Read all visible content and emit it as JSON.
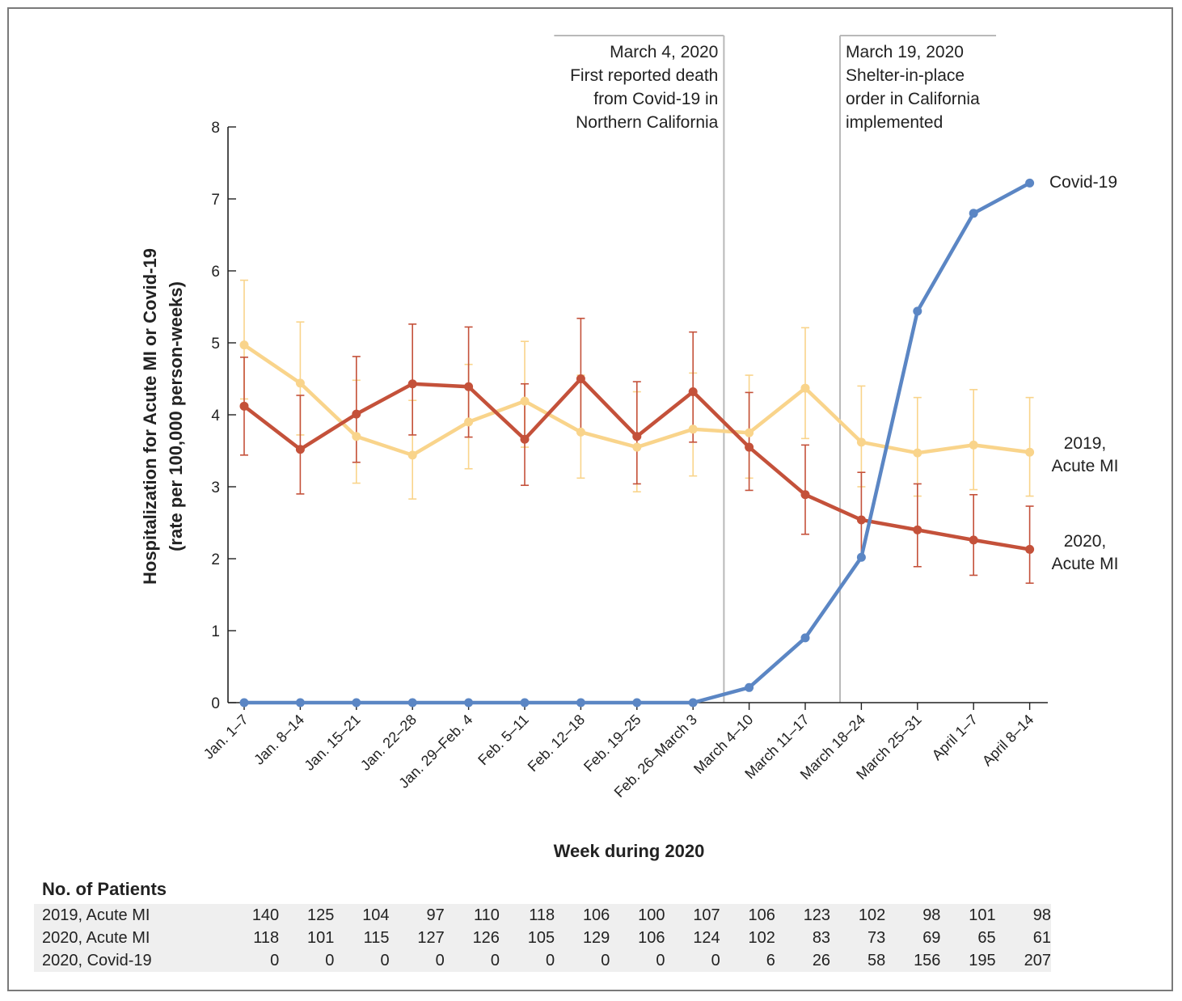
{
  "chart_data": {
    "type": "line",
    "xlabel": "Week during 2020",
    "ylabel_line1": "Hospitalization for Acute MI or Covid-19",
    "ylabel_line2": "(rate per 100,000 person-weeks)",
    "ylim": [
      0,
      8
    ],
    "yticks": [
      "0",
      "1",
      "2",
      "3",
      "4",
      "5",
      "6",
      "7",
      "8"
    ],
    "categories": [
      "Jan. 1–7",
      "Jan. 8–14",
      "Jan. 15–21",
      "Jan. 22–28",
      "Jan. 29–Feb. 4",
      "Feb. 5–11",
      "Feb. 12–18",
      "Feb. 19–25",
      "Feb. 26–March 3",
      "March 4–10",
      "March 11–17",
      "March 18–24",
      "March 25–31",
      "April 1–7",
      "April 8–14"
    ],
    "series": [
      {
        "name": "2019, Acute MI",
        "label_line1": "2019,",
        "label_line2": "Acute MI",
        "color": "#f9d48b",
        "values": [
          4.97,
          4.44,
          3.7,
          3.44,
          3.9,
          4.19,
          3.76,
          3.55,
          3.8,
          3.75,
          4.37,
          3.62,
          3.47,
          3.58,
          3.48
        ],
        "lower": [
          4.22,
          3.72,
          3.05,
          2.83,
          3.25,
          3.55,
          3.12,
          2.93,
          3.15,
          3.12,
          3.67,
          3.0,
          2.87,
          2.96,
          2.87
        ],
        "upper": [
          5.87,
          5.29,
          4.48,
          4.2,
          4.7,
          5.02,
          4.55,
          4.32,
          4.58,
          4.55,
          5.21,
          4.4,
          4.24,
          4.35,
          4.24
        ]
      },
      {
        "name": "2020, Acute MI",
        "label_line1": "2020,",
        "label_line2": "Acute MI",
        "color": "#c4513a",
        "values": [
          4.12,
          3.52,
          4.01,
          4.43,
          4.39,
          3.66,
          4.5,
          3.7,
          4.32,
          3.55,
          2.89,
          2.54,
          2.4,
          2.26,
          2.13
        ],
        "lower": [
          3.44,
          2.9,
          3.34,
          3.72,
          3.69,
          3.02,
          3.78,
          3.04,
          3.62,
          2.95,
          2.34,
          2.01,
          1.89,
          1.77,
          1.66
        ],
        "upper": [
          4.8,
          4.27,
          4.81,
          5.26,
          5.22,
          4.43,
          5.34,
          4.46,
          5.15,
          4.31,
          3.58,
          3.2,
          3.04,
          2.89,
          2.73
        ]
      },
      {
        "name": "Covid-19",
        "label_line1": "Covid-19",
        "color": "#5b86c4",
        "values": [
          0,
          0,
          0,
          0,
          0,
          0,
          0,
          0,
          0,
          0.21,
          0.9,
          2.02,
          5.44,
          6.8,
          7.22
        ]
      }
    ],
    "annotations": [
      {
        "lines": [
          "March 4, 2020",
          "First reported death",
          "from Covid-19 in",
          "Northern California"
        ],
        "x_position": 8.55,
        "align": "right"
      },
      {
        "lines": [
          "March 19, 2020",
          "Shelter-in-place",
          "order in California",
          "implemented"
        ],
        "x_position": 10.62,
        "align": "left"
      }
    ]
  },
  "patients": {
    "title": "No. of Patients",
    "rows": [
      {
        "label": "2019, Acute MI",
        "values": [
          "140",
          "125",
          "104",
          "97",
          "110",
          "118",
          "106",
          "100",
          "107",
          "106",
          "123",
          "102",
          "98",
          "101",
          "98"
        ]
      },
      {
        "label": "2020, Acute MI",
        "values": [
          "118",
          "101",
          "115",
          "127",
          "126",
          "105",
          "129",
          "106",
          "124",
          "102",
          "83",
          "73",
          "69",
          "65",
          "61"
        ]
      },
      {
        "label": "2020, Covid-19",
        "values": [
          "0",
          "0",
          "0",
          "0",
          "0",
          "0",
          "0",
          "0",
          "0",
          "6",
          "26",
          "58",
          "156",
          "195",
          "207"
        ]
      }
    ]
  }
}
